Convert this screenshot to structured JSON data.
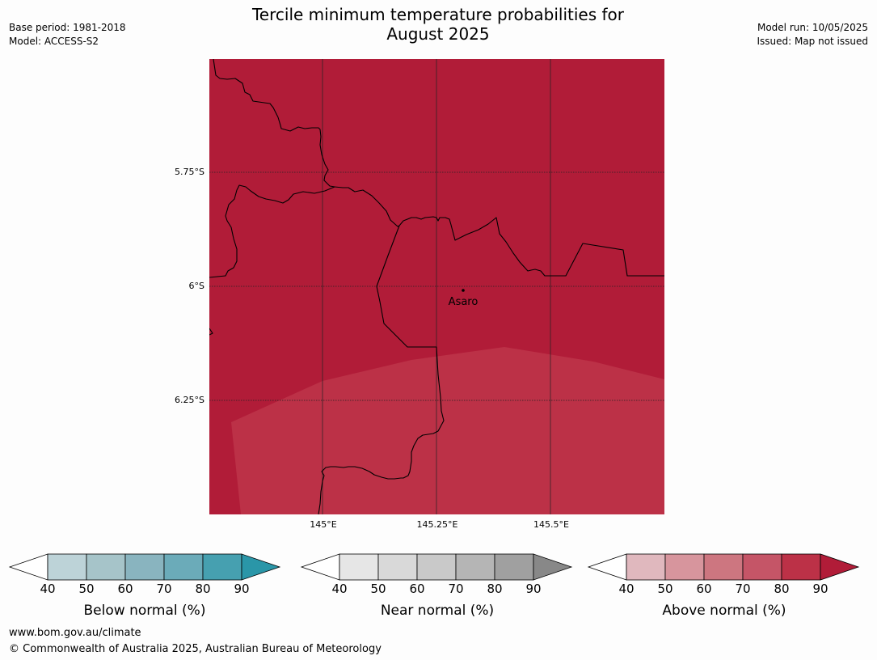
{
  "title": {
    "line1": "Tercile minimum temperature probabilities for",
    "line2": "August 2025"
  },
  "meta_left": {
    "base_period": "Base period: 1981-2018",
    "model": "Model: ACCESS-S2"
  },
  "meta_right": {
    "model_run": "Model run: 10/05/2025",
    "issued": "Issued: Map not issued"
  },
  "map": {
    "lat_labels": [
      "5.75°S",
      "6°S",
      "6.25°S"
    ],
    "lon_labels": [
      "145°E",
      "145.25°E",
      "145.5°E"
    ],
    "place_label": "Asaro",
    "colors": {
      "above_90": "#b11c38",
      "above_80": "#bc3147",
      "gridline": "#222222",
      "border": "#000000"
    }
  },
  "colorbars": [
    {
      "label": "Below normal (%)",
      "ticks": [
        "40",
        "50",
        "60",
        "70",
        "80",
        "90"
      ],
      "colors": [
        "#bdd3d8",
        "#a6c4c9",
        "#89b4bf",
        "#6babb9",
        "#46a0b0",
        "#2a96a8"
      ]
    },
    {
      "label": "Near normal (%)",
      "ticks": [
        "40",
        "50",
        "60",
        "70",
        "80",
        "90"
      ],
      "colors": [
        "#e6e6e6",
        "#d9d9d9",
        "#c9c9c9",
        "#b5b5b5",
        "#a0a0a0",
        "#888888"
      ]
    },
    {
      "label": "Above normal (%)",
      "ticks": [
        "40",
        "50",
        "60",
        "70",
        "80",
        "90"
      ],
      "colors": [
        "#e0b8be",
        "#d7959d",
        "#cd7680",
        "#c55567",
        "#bc3147",
        "#b11c38"
      ]
    }
  ],
  "footer": {
    "website": "www.bom.gov.au/climate",
    "copyright": "© Commonwealth of Australia 2025, Australian Bureau of Meteorology"
  }
}
